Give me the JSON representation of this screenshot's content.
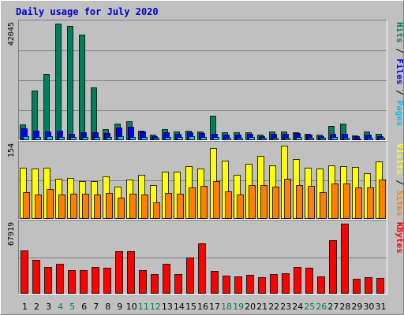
{
  "title": "Daily usage for July 2020",
  "colors": {
    "background": "#c0c0c0",
    "plot_bg": "#c0c0c0",
    "title": "#0000cc",
    "hits": "#00805c",
    "files": "#0000ff",
    "pages": "#00c0ff",
    "visits": "#ffff00",
    "sites": "#ff8000",
    "kbytes": "#ff0000",
    "weekend_label": "#00804c",
    "weekday_label": "#000000"
  },
  "chart_data": [
    {
      "type": "bar",
      "panel": "hits-files-pages",
      "ymax_label": "42045",
      "ylim": [
        0,
        42045
      ],
      "legend": [
        {
          "text": "Pages",
          "color": "#00c0ff"
        },
        {
          "text": " / ",
          "color": "#000000"
        },
        {
          "text": "Files",
          "color": "#0000ff"
        },
        {
          "text": " / ",
          "color": "#000000"
        },
        {
          "text": "Hits",
          "color": "#00805c"
        }
      ],
      "categories": [
        "1",
        "2",
        "3",
        "4",
        "5",
        "6",
        "7",
        "8",
        "9",
        "10",
        "11",
        "12",
        "13",
        "14",
        "15",
        "16",
        "17",
        "18",
        "19",
        "20",
        "21",
        "22",
        "23",
        "24",
        "25",
        "26",
        "27",
        "28",
        "29",
        "30",
        "31"
      ],
      "series": [
        {
          "name": "Hits",
          "values": [
            5800,
            18000,
            23900,
            42045,
            41200,
            38200,
            19000,
            3900,
            6000,
            6700,
            3400,
            2000,
            3900,
            3200,
            3500,
            3000,
            8700,
            2800,
            2700,
            2700,
            1900,
            3200,
            3200,
            2800,
            2400,
            1900,
            5200,
            5900,
            1800,
            3100,
            2300
          ]
        },
        {
          "name": "Files",
          "values": [
            4200,
            3500,
            3100,
            3300,
            2400,
            2700,
            2900,
            2500,
            4500,
            4800,
            3000,
            1500,
            2800,
            2400,
            2800,
            2500,
            2300,
            1900,
            1900,
            2200,
            1400,
            2300,
            2400,
            2500,
            1900,
            1300,
            2400,
            2300,
            1400,
            2000,
            1400
          ]
        },
        {
          "name": "Pages",
          "values": [
            1500,
            1200,
            1300,
            1100,
            1100,
            1000,
            1200,
            1200,
            1400,
            1200,
            1200,
            900,
            1100,
            1100,
            1300,
            1200,
            1100,
            900,
            800,
            1000,
            800,
            900,
            900,
            1000,
            900,
            800,
            1000,
            900,
            700,
            800,
            900
          ]
        }
      ]
    },
    {
      "type": "bar",
      "panel": "visits-sites",
      "ymax_label": "154",
      "ylim": [
        0,
        154
      ],
      "legend": [
        {
          "text": "Sites",
          "color": "#ff8000"
        },
        {
          "text": " / ",
          "color": "#000000"
        },
        {
          "text": "Visits",
          "color": "#ffff00"
        }
      ],
      "categories": [
        "1",
        "2",
        "3",
        "4",
        "5",
        "6",
        "7",
        "8",
        "9",
        "10",
        "11",
        "12",
        "13",
        "14",
        "15",
        "16",
        "17",
        "18",
        "19",
        "20",
        "21",
        "22",
        "23",
        "24",
        "25",
        "26",
        "27",
        "28",
        "29",
        "30",
        "31"
      ],
      "series": [
        {
          "name": "Visits",
          "values": [
            106,
            105,
            106,
            84,
            85,
            79,
            78,
            89,
            67,
            82,
            91,
            71,
            98,
            99,
            109,
            105,
            148,
            122,
            92,
            115,
            131,
            112,
            152,
            125,
            106,
            105,
            112,
            109,
            108,
            95,
            120
          ]
        },
        {
          "name": "Sites",
          "values": [
            56,
            51,
            63,
            51,
            52,
            53,
            50,
            54,
            44,
            53,
            50,
            35,
            54,
            52,
            66,
            69,
            79,
            58,
            51,
            70,
            71,
            67,
            84,
            70,
            69,
            56,
            74,
            74,
            65,
            66,
            82
          ]
        }
      ]
    },
    {
      "type": "bar",
      "panel": "kbytes",
      "ymax_label": "67919",
      "ylim": [
        0,
        67919
      ],
      "legend": [
        {
          "text": "KBytes",
          "color": "#ff0000"
        }
      ],
      "categories": [
        "1",
        "2",
        "3",
        "4",
        "5",
        "6",
        "7",
        "8",
        "9",
        "10",
        "11",
        "12",
        "13",
        "14",
        "15",
        "16",
        "17",
        "18",
        "19",
        "20",
        "21",
        "22",
        "23",
        "24",
        "25",
        "26",
        "27",
        "28",
        "29",
        "30",
        "31"
      ],
      "series": [
        {
          "name": "KBytes",
          "values": [
            42000,
            33000,
            26000,
            29000,
            23000,
            23000,
            26000,
            25000,
            41000,
            41000,
            23000,
            19000,
            29000,
            19000,
            35000,
            49000,
            22000,
            17500,
            16500,
            18500,
            16000,
            19000,
            20000,
            26000,
            25000,
            17000,
            52000,
            67919,
            14500,
            16000,
            15500
          ]
        }
      ]
    }
  ],
  "x_labels": [
    "1",
    "2",
    "3",
    "4",
    "5",
    "6",
    "7",
    "8",
    "9",
    "10",
    "11",
    "12",
    "13",
    "14",
    "15",
    "16",
    "17",
    "18",
    "19",
    "20",
    "21",
    "22",
    "23",
    "24",
    "25",
    "26",
    "27",
    "28",
    "29",
    "30",
    "31"
  ],
  "weekend_days": [
    "4",
    "5",
    "11",
    "12",
    "18",
    "19",
    "25",
    "26"
  ]
}
